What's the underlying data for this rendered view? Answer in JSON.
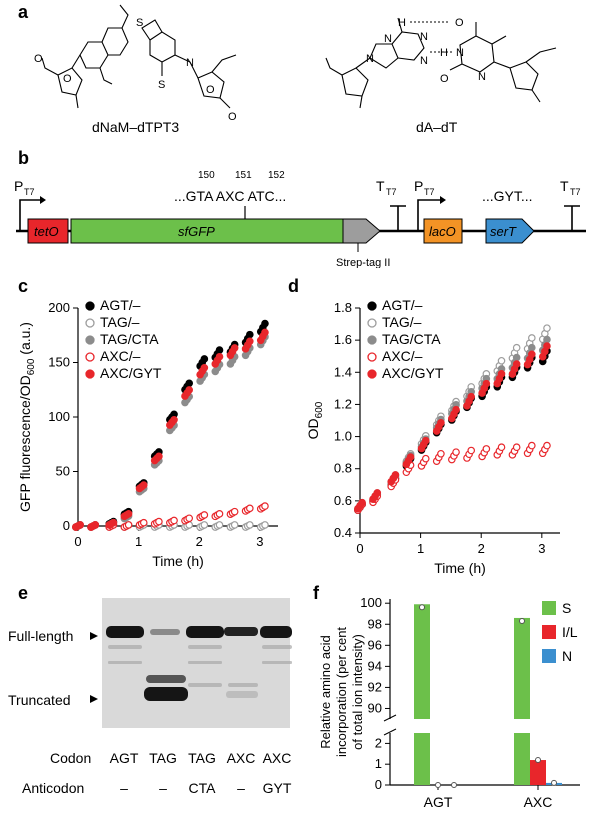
{
  "panels": {
    "a": "a",
    "b": "b",
    "c": "c",
    "d": "d",
    "e": "e",
    "f": "f"
  },
  "panel_a": {
    "pair1_label": "dNaM–dTPT3",
    "pair2_label": "dA–dT",
    "ring_atoms": [
      "O",
      "O",
      "O",
      "O",
      "S",
      "S",
      "N",
      "N",
      "N",
      "N",
      "N",
      "N",
      "N",
      "O",
      "O",
      "H",
      "H"
    ]
  },
  "panel_b": {
    "promoter1": "P",
    "promoter1_sub": "T7",
    "tetO": "tetO",
    "sfGFP": "sfGFP",
    "codon_pos": [
      "150",
      "151",
      "152"
    ],
    "codon_seq": "...GTA AXC ATC...",
    "tag": "Strep-tag II",
    "terminator1": "T",
    "terminator1_sub": "T7",
    "promoter2": "P",
    "promoter2_sub": "T7",
    "lacO": "lacO",
    "anticodon_seq": "...GYT...",
    "serT": "serT",
    "terminator2": "T",
    "terminator2_sub": "T7",
    "colors": {
      "tetO": "#e8262b",
      "sfGFP": "#6cc04a",
      "lacO": "#f39325",
      "serT": "#3b8fcf",
      "tag": "#9d9d9d"
    }
  },
  "legend": [
    {
      "label": "AGT/–",
      "marker": "filled",
      "color": "#000000"
    },
    {
      "label": "TAG/–",
      "marker": "open",
      "color": "#9d9d9d"
    },
    {
      "label": "TAG/CTA",
      "marker": "filled",
      "color": "#8c8c8c"
    },
    {
      "label": "AXC/–",
      "marker": "open",
      "color": "#e8262b"
    },
    {
      "label": "AXC/GYT",
      "marker": "filled",
      "color": "#e8262b"
    }
  ],
  "chart_data": [
    {
      "id": "c",
      "type": "scatter",
      "xlabel": "Time (h)",
      "ylabel": "GFP fluorescence/OD",
      "ylabel_sub": "600",
      "ylabel_unit": "(a.u.)",
      "xlim": [
        0,
        3.3
      ],
      "ylim": [
        0,
        200
      ],
      "xticks": [
        0,
        1,
        2,
        3
      ],
      "yticks": [
        0,
        50,
        100,
        150,
        200
      ],
      "x": [
        0,
        0.25,
        0.55,
        0.8,
        1.05,
        1.3,
        1.55,
        1.8,
        2.05,
        2.3,
        2.55,
        2.8,
        3.05
      ],
      "series": [
        {
          "name": "AGT/–",
          "values": [
            0,
            0,
            3,
            12,
            38,
            66,
            100,
            128,
            150,
            158,
            163,
            172,
            182
          ]
        },
        {
          "name": "TAG/–",
          "values": [
            0,
            0,
            0,
            0,
            0,
            0,
            0,
            0,
            0,
            0,
            0,
            0,
            0
          ]
        },
        {
          "name": "TAG/CTA",
          "values": [
            0,
            0,
            2,
            8,
            33,
            58,
            90,
            116,
            136,
            145,
            152,
            160,
            170
          ]
        },
        {
          "name": "AXC/–",
          "values": [
            0,
            0,
            0,
            0,
            2,
            3,
            4,
            6,
            9,
            10,
            12,
            15,
            17
          ]
        },
        {
          "name": "AXC/GYT",
          "values": [
            0,
            0,
            2,
            10,
            36,
            62,
            95,
            122,
            142,
            152,
            160,
            166,
            174
          ]
        }
      ]
    },
    {
      "id": "d",
      "type": "scatter",
      "xlabel": "Time (h)",
      "ylabel": "OD",
      "ylabel_sub": "600",
      "xlim": [
        0,
        3.3
      ],
      "ylim": [
        0.4,
        1.8
      ],
      "xticks": [
        0,
        1,
        2,
        3
      ],
      "yticks": [
        0.4,
        0.6,
        0.8,
        1.0,
        1.2,
        1.4,
        1.6,
        1.8
      ],
      "x": [
        0,
        0.25,
        0.55,
        0.8,
        1.05,
        1.3,
        1.55,
        1.8,
        2.05,
        2.3,
        2.55,
        2.8,
        3.05
      ],
      "series": [
        {
          "name": "AGT/–",
          "values": [
            0.56,
            0.62,
            0.72,
            0.84,
            0.94,
            1.05,
            1.13,
            1.21,
            1.28,
            1.34,
            1.4,
            1.46,
            1.5
          ]
        },
        {
          "name": "TAG/–",
          "values": [
            0.57,
            0.63,
            0.74,
            0.87,
            0.98,
            1.1,
            1.19,
            1.28,
            1.36,
            1.44,
            1.52,
            1.58,
            1.64
          ]
        },
        {
          "name": "TAG/CTA",
          "values": [
            0.56,
            0.62,
            0.73,
            0.86,
            0.96,
            1.08,
            1.17,
            1.25,
            1.33,
            1.39,
            1.46,
            1.52,
            1.57
          ]
        },
        {
          "name": "AXC/–",
          "values": [
            0.56,
            0.61,
            0.71,
            0.8,
            0.84,
            0.87,
            0.88,
            0.89,
            0.9,
            0.91,
            0.91,
            0.92,
            0.92
          ]
        },
        {
          "name": "AXC/GYT",
          "values": [
            0.57,
            0.63,
            0.74,
            0.85,
            0.95,
            1.06,
            1.14,
            1.22,
            1.3,
            1.36,
            1.42,
            1.48,
            1.53
          ]
        }
      ]
    },
    {
      "id": "f",
      "type": "bar",
      "ylabel": "Relative amino acid incorporation (per cent of total ion intensity)",
      "categories": [
        "AGT",
        "AXC"
      ],
      "yticks_upper": [
        90,
        92,
        94,
        96,
        98,
        100
      ],
      "yticks_lower": [
        0,
        1,
        2
      ],
      "ylim_upper": [
        89,
        100.4
      ],
      "ylim_lower": [
        0,
        2.5
      ],
      "series": [
        {
          "name": "S",
          "color": "#6cc04a",
          "values": [
            99.9,
            98.6
          ]
        },
        {
          "name": "I/L",
          "color": "#e8262b",
          "values": [
            0.0,
            1.2
          ]
        },
        {
          "name": "N",
          "color": "#3b8fcf",
          "values": [
            0.0,
            0.1
          ]
        }
      ]
    }
  ],
  "panel_e": {
    "full_length": "Full-length",
    "truncated": "Truncated",
    "codon_label": "Codon",
    "anticodon_label": "Anticodon",
    "codons": [
      "AGT",
      "TAG",
      "TAG",
      "AXC",
      "AXC"
    ],
    "anticodons": [
      "–",
      "–",
      "CTA",
      "–",
      "GYT"
    ]
  },
  "fonts": {}
}
